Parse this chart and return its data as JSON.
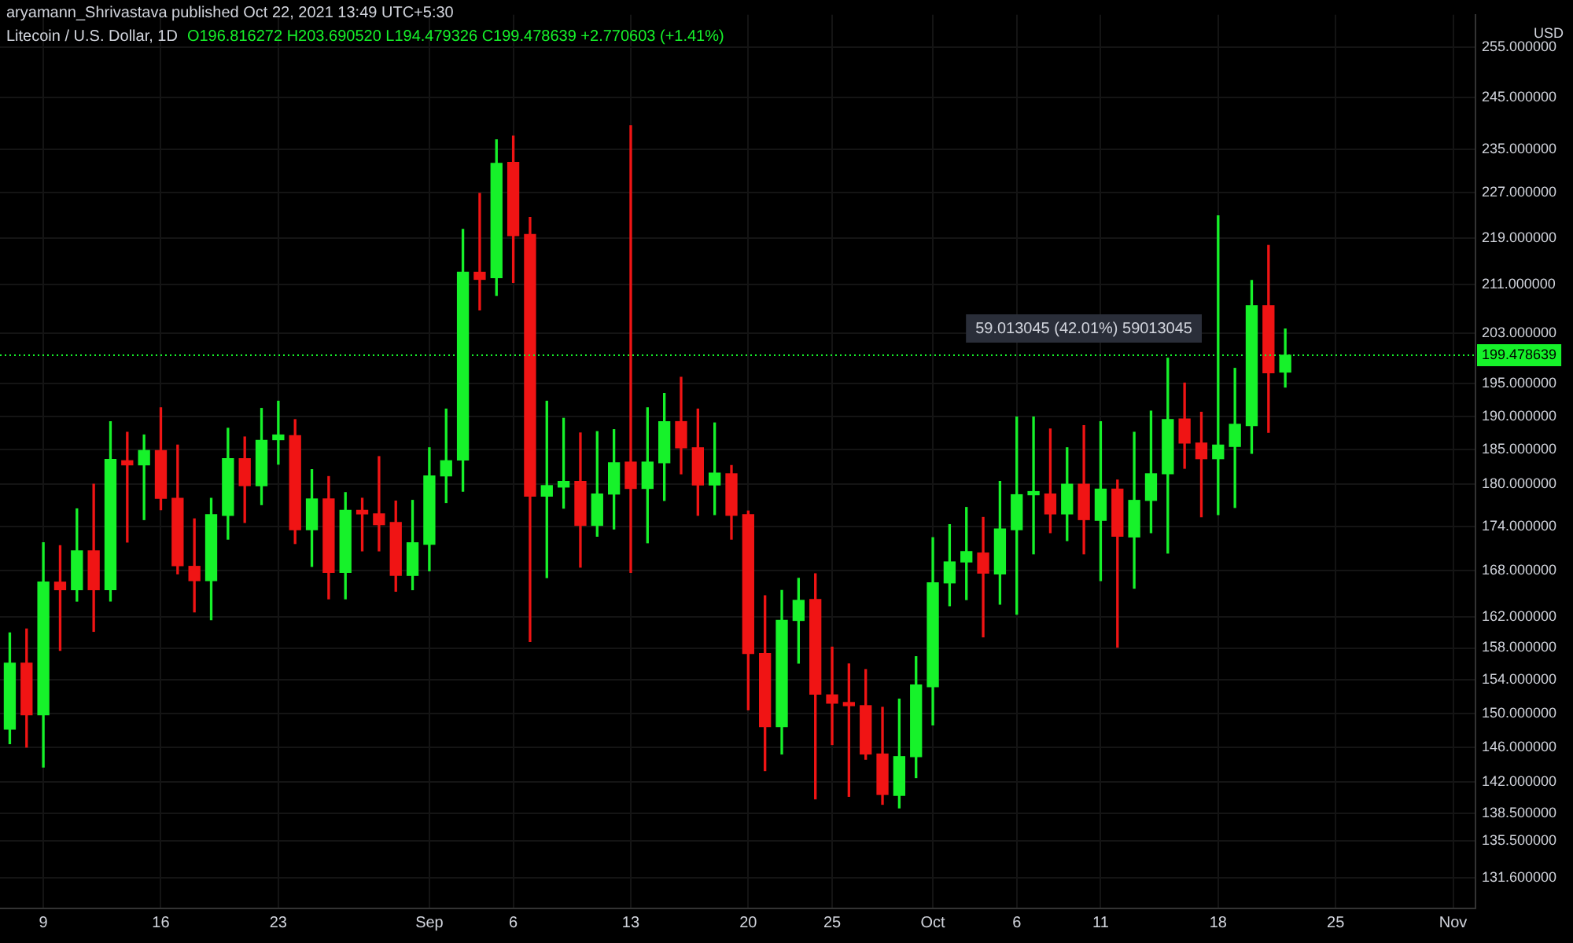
{
  "chart_data": {
    "type": "candlestick",
    "title": "Litecoin / U.S. Dollar, 1D",
    "subtitle": "O196.816272 H203.690520 L194.479326 C199.478639 +2.770603 (+1.41%)",
    "ylabel": "USD",
    "annotations": [
      "aryamann_Shrivastava published Oct 22, 2021 13:49 UTC+5:30",
      {
        "text": "59.013045 (42.01%) 59013045",
        "x": "2021-10-10",
        "y": 199.48
      }
    ],
    "x": [
      "2021-08-07",
      "2021-08-08",
      "2021-08-09",
      "2021-08-10",
      "2021-08-11",
      "2021-08-12",
      "2021-08-13",
      "2021-08-14",
      "2021-08-15",
      "2021-08-16",
      "2021-08-17",
      "2021-08-18",
      "2021-08-19",
      "2021-08-20",
      "2021-08-21",
      "2021-08-22",
      "2021-08-23",
      "2021-08-24",
      "2021-08-25",
      "2021-08-26",
      "2021-08-27",
      "2021-08-28",
      "2021-08-29",
      "2021-08-30",
      "2021-08-31",
      "2021-09-01",
      "2021-09-02",
      "2021-09-03",
      "2021-09-04",
      "2021-09-05",
      "2021-09-06",
      "2021-09-07",
      "2021-09-08",
      "2021-09-09",
      "2021-09-10",
      "2021-09-11",
      "2021-09-12",
      "2021-09-13",
      "2021-09-14",
      "2021-09-15",
      "2021-09-16",
      "2021-09-17",
      "2021-09-18",
      "2021-09-19",
      "2021-09-20",
      "2021-09-21",
      "2021-09-22",
      "2021-09-23",
      "2021-09-24",
      "2021-09-25",
      "2021-09-26",
      "2021-09-27",
      "2021-09-28",
      "2021-09-29",
      "2021-09-30",
      "2021-10-01",
      "2021-10-02",
      "2021-10-03",
      "2021-10-04",
      "2021-10-05",
      "2021-10-06",
      "2021-10-07",
      "2021-10-08",
      "2021-10-09",
      "2021-10-10",
      "2021-10-11",
      "2021-10-12",
      "2021-10-13",
      "2021-10-14",
      "2021-10-15",
      "2021-10-16",
      "2021-10-17",
      "2021-10-18",
      "2021-10-19",
      "2021-10-20",
      "2021-10-21",
      "2021-10-22"
    ],
    "ohlc": [
      [
        148.1,
        159.9,
        146.4,
        156.1
      ],
      [
        156.1,
        160.4,
        146.0,
        149.8
      ],
      [
        149.8,
        171.8,
        143.7,
        166.5
      ],
      [
        166.5,
        171.4,
        157.7,
        165.5
      ],
      [
        165.5,
        176.5,
        164.0,
        170.7
      ],
      [
        170.7,
        180.0,
        160.1,
        165.5
      ],
      [
        165.5,
        189.2,
        164.0,
        183.6
      ],
      [
        183.4,
        187.6,
        171.9,
        182.8
      ],
      [
        182.8,
        187.2,
        175.0,
        184.9
      ],
      [
        184.9,
        191.3,
        176.4,
        178.0
      ],
      [
        178.0,
        185.7,
        167.6,
        168.7
      ],
      [
        168.6,
        175.1,
        162.6,
        166.7
      ],
      [
        166.7,
        178.0,
        161.6,
        175.7
      ],
      [
        175.6,
        188.2,
        172.3,
        183.7
      ],
      [
        183.7,
        186.9,
        174.6,
        179.8
      ],
      [
        179.8,
        191.2,
        177.1,
        186.4
      ],
      [
        186.5,
        192.3,
        182.9,
        187.2
      ],
      [
        187.1,
        189.5,
        171.7,
        173.6
      ],
      [
        173.6,
        182.1,
        168.6,
        177.9
      ],
      [
        177.9,
        181.1,
        164.3,
        167.8
      ],
      [
        167.8,
        178.8,
        164.3,
        176.3
      ],
      [
        176.3,
        178.0,
        170.7,
        175.8
      ],
      [
        175.8,
        184.0,
        170.7,
        174.3
      ],
      [
        174.6,
        177.6,
        165.3,
        167.4
      ],
      [
        167.4,
        177.7,
        165.5,
        171.8
      ],
      [
        171.6,
        185.3,
        168.0,
        181.2
      ],
      [
        181.2,
        191.1,
        177.4,
        183.4
      ],
      [
        183.5,
        220.5,
        179.0,
        213.1
      ],
      [
        213.1,
        226.9,
        206.8,
        211.9
      ],
      [
        212.2,
        236.8,
        209.2,
        232.4
      ],
      [
        232.6,
        237.5,
        211.4,
        219.4
      ],
      [
        219.6,
        222.6,
        158.8,
        178.3
      ],
      [
        178.3,
        192.3,
        167.1,
        179.8
      ],
      [
        179.6,
        189.7,
        176.6,
        180.4
      ],
      [
        180.4,
        187.5,
        168.5,
        174.2
      ],
      [
        174.2,
        187.7,
        172.7,
        178.6
      ],
      [
        178.6,
        188.0,
        173.7,
        183.1
      ],
      [
        183.2,
        239.5,
        167.8,
        179.4
      ],
      [
        179.4,
        191.3,
        171.8,
        183.2
      ],
      [
        183.1,
        193.5,
        177.7,
        189.2
      ],
      [
        189.2,
        196.0,
        181.5,
        185.3
      ],
      [
        185.3,
        191.1,
        175.6,
        179.9
      ],
      [
        179.9,
        189.0,
        175.7,
        181.6
      ],
      [
        181.5,
        182.7,
        172.3,
        175.6
      ],
      [
        175.7,
        176.2,
        150.4,
        157.3
      ],
      [
        157.3,
        164.7,
        143.3,
        148.4
      ],
      [
        148.4,
        165.4,
        145.2,
        161.5
      ],
      [
        161.5,
        167.0,
        156.1,
        164.1
      ],
      [
        164.2,
        167.6,
        140.1,
        152.3
      ],
      [
        152.2,
        158.1,
        146.3,
        151.2
      ],
      [
        151.2,
        156.0,
        140.4,
        150.9
      ],
      [
        150.9,
        155.3,
        144.6,
        145.2
      ],
      [
        145.2,
        150.7,
        139.5,
        140.6
      ],
      [
        140.5,
        151.7,
        139.1,
        144.9
      ],
      [
        144.9,
        156.9,
        142.5,
        153.4
      ],
      [
        153.2,
        172.5,
        148.6,
        166.4
      ],
      [
        166.4,
        174.3,
        163.4,
        169.2
      ],
      [
        169.2,
        176.7,
        164.2,
        170.6
      ],
      [
        170.4,
        175.3,
        159.4,
        167.7
      ],
      [
        167.6,
        180.4,
        163.6,
        173.7
      ],
      [
        173.6,
        189.9,
        162.3,
        178.5
      ],
      [
        178.5,
        189.9,
        170.3,
        178.7
      ],
      [
        178.6,
        188.1,
        173.2,
        175.8
      ],
      [
        175.8,
        185.3,
        172.1,
        180.0
      ],
      [
        180.0,
        188.6,
        170.3,
        175.0
      ],
      [
        174.9,
        189.2,
        166.7,
        179.3
      ],
      [
        179.3,
        180.6,
        158.1,
        172.7
      ],
      [
        172.6,
        187.6,
        165.7,
        177.7
      ],
      [
        177.7,
        190.8,
        173.2,
        181.5
      ],
      [
        181.5,
        199.0,
        170.4,
        189.5
      ],
      [
        189.6,
        195.1,
        182.3,
        186.0
      ],
      [
        186.0,
        190.6,
        175.4,
        183.7
      ],
      [
        183.7,
        222.9,
        175.7,
        185.7
      ],
      [
        185.5,
        197.4,
        176.7,
        188.8
      ],
      [
        188.6,
        211.7,
        184.5,
        207.5
      ],
      [
        207.5,
        217.7,
        187.6,
        196.7
      ],
      [
        196.82,
        203.69,
        194.48,
        199.48
      ]
    ],
    "colors": [
      "#16f22a",
      "#f01414",
      "#16f22a",
      "#f01414",
      "#16f22a",
      "#f01414",
      "#16f22a",
      "#f01414",
      "#16f22a",
      "#f01414",
      "#f01414",
      "#f01414",
      "#16f22a",
      "#16f22a",
      "#f01414",
      "#16f22a",
      "#16f22a",
      "#f01414",
      "#16f22a",
      "#f01414",
      "#16f22a",
      "#f01414",
      "#f01414",
      "#f01414",
      "#16f22a",
      "#16f22a",
      "#16f22a",
      "#16f22a",
      "#f01414",
      "#16f22a",
      "#f01414",
      "#f01414",
      "#16f22a",
      "#16f22a",
      "#f01414",
      "#16f22a",
      "#16f22a",
      "#f01414",
      "#16f22a",
      "#16f22a",
      "#f01414",
      "#f01414",
      "#16f22a",
      "#f01414",
      "#f01414",
      "#f01414",
      "#16f22a",
      "#16f22a",
      "#f01414",
      "#f01414",
      "#f01414",
      "#f01414",
      "#f01414",
      "#16f22a",
      "#16f22a",
      "#16f22a",
      "#16f22a",
      "#16f22a",
      "#f01414",
      "#16f22a",
      "#16f22a",
      "#16f22a",
      "#f01414",
      "#16f22a",
      "#f01414",
      "#16f22a",
      "#f01414",
      "#16f22a",
      "#16f22a",
      "#16f22a",
      "#f01414",
      "#f01414",
      "#16f22a",
      "#16f22a",
      "#16f22a",
      "#f01414",
      "#16f22a"
    ],
    "xlim": [
      "2021-08-06T10:00",
      "2021-11-02T08:00"
    ],
    "xticks": [
      {
        "value": "2021-08-09",
        "label": "9"
      },
      {
        "value": "2021-08-16",
        "label": "16"
      },
      {
        "value": "2021-08-23",
        "label": "23"
      },
      {
        "value": "2021-09-01",
        "label": "Sep"
      },
      {
        "value": "2021-09-06",
        "label": "6"
      },
      {
        "value": "2021-09-13",
        "label": "13"
      },
      {
        "value": "2021-09-20",
        "label": "20"
      },
      {
        "value": "2021-09-25",
        "label": "25"
      },
      {
        "value": "2021-10-01",
        "label": "Oct"
      },
      {
        "value": "2021-10-06",
        "label": "6"
      },
      {
        "value": "2021-10-11",
        "label": "11"
      },
      {
        "value": "2021-10-18",
        "label": "18"
      },
      {
        "value": "2021-10-25",
        "label": "25"
      },
      {
        "value": "2021-11-01",
        "label": "Nov"
      }
    ],
    "ylim": [
      128.4,
      261.6
    ],
    "yticks": [
      {
        "value": 255,
        "label": "255.000000"
      },
      {
        "value": 245,
        "label": "245.000000"
      },
      {
        "value": 235,
        "label": "235.000000"
      },
      {
        "value": 227,
        "label": "227.000000"
      },
      {
        "value": 219,
        "label": "219.000000"
      },
      {
        "value": 211,
        "label": "211.000000"
      },
      {
        "value": 203,
        "label": "203.000000"
      },
      {
        "value": 195,
        "label": "195.000000"
      },
      {
        "value": 190,
        "label": "190.000000"
      },
      {
        "value": 185,
        "label": "185.000000"
      },
      {
        "value": 180,
        "label": "180.000000"
      },
      {
        "value": 174,
        "label": "174.000000"
      },
      {
        "value": 168,
        "label": "168.000000"
      },
      {
        "value": 162,
        "label": "162.000000"
      },
      {
        "value": 158,
        "label": "158.000000"
      },
      {
        "value": 154,
        "label": "154.000000"
      },
      {
        "value": 150,
        "label": "150.000000"
      },
      {
        "value": 146,
        "label": "146.000000"
      },
      {
        "value": 142,
        "label": "142.000000"
      },
      {
        "value": 138.5,
        "label": "138.500000"
      },
      {
        "value": 135.5,
        "label": "135.500000"
      },
      {
        "value": 131.6,
        "label": "131.600000"
      }
    ],
    "log": "y",
    "grid": true,
    "ref_lines": [
      {
        "axis": "y",
        "value": 199.478639,
        "label": "199.478639",
        "color": "#16f22a",
        "line_style": "dotted"
      }
    ]
  }
}
